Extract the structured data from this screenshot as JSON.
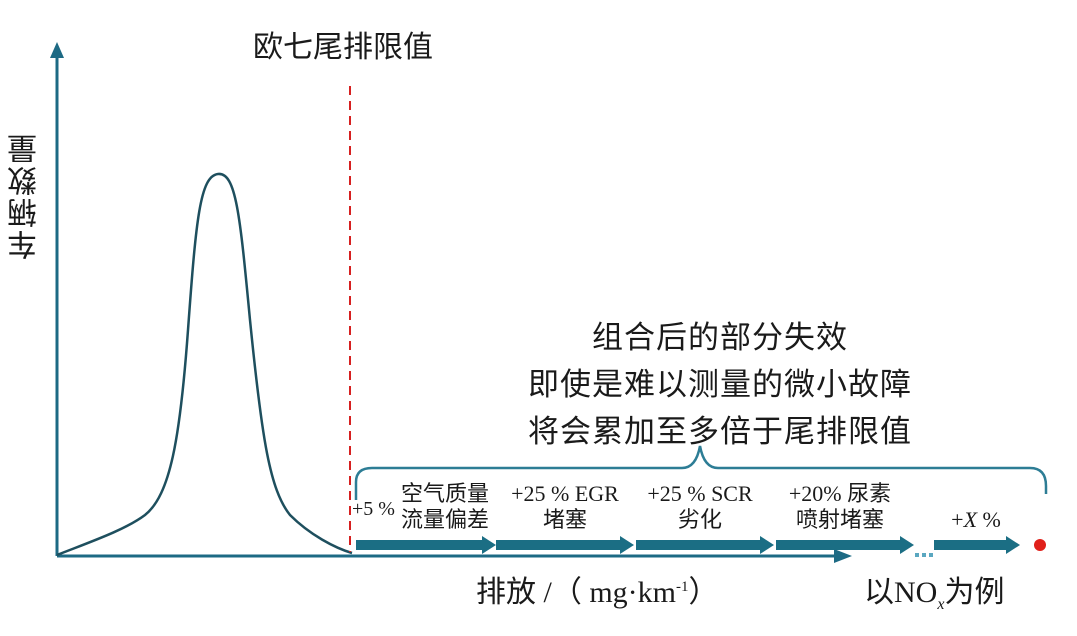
{
  "limit_label": "欧七尾排限值",
  "y_axis_label": "车辆数量",
  "note_lines": [
    "组合后的部分失效",
    "即使是难以测量的微小故障",
    "将会累加至多倍于尾排限值"
  ],
  "faults": [
    {
      "increase": "+5 %",
      "name_line1": "空气质量",
      "name_line2": "流量偏差"
    },
    {
      "increase": "+25 %",
      "name": "EGR",
      "name_line2": "堵塞"
    },
    {
      "increase": "+25 %",
      "name": "SCR",
      "name_line2": "劣化"
    },
    {
      "increase": "+20%",
      "name": "尿素",
      "name_line2": "喷射堵塞"
    },
    {
      "increase": "+",
      "variable": "X",
      "unit": "%"
    }
  ],
  "x_axis_label": {
    "text": "排放 /（ mg·km",
    "superscript": "-1",
    "close": "）"
  },
  "example_label": {
    "prefix": "以NO",
    "subscript": "x",
    "suffix": "为例"
  },
  "colors": {
    "axis": "#1d6a84",
    "curve": "#1e4f5e",
    "limit_line": "#d62020",
    "arrow": "#1b6e84",
    "brace": "#2d7d95",
    "endpoint": "#e0201a"
  }
}
